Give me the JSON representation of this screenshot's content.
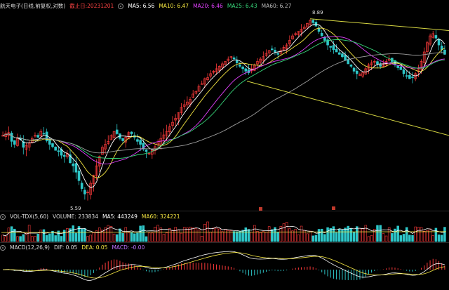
{
  "header": {
    "title": "航天电子(日线,前复权,对数)",
    "cutoff_label": "截止日:20231201",
    "ma5": "MA5: 6.56",
    "ma10": "MA10: 6.47",
    "ma20": "MA20: 6.46",
    "ma25": "MA25: 6.43",
    "ma60": "MA60: 6.27"
  },
  "volume_panel": {
    "title": "VOL-TDX(5,60)",
    "volume": "VOLUME: 233834",
    "ma5": "MA5: 443249",
    "ma60": "MA60: 324221"
  },
  "macd_panel": {
    "title": "MACD(12,26,9)",
    "dif": "DIF: 0.05",
    "dea": "DEA: 0.05",
    "macd": "MACD: -0.00"
  },
  "annotations": {
    "high": "8.89",
    "low": "5.59"
  },
  "colors": {
    "up": "#ff3b3b",
    "down": "#2ec7c9",
    "ma5": "#ffffff",
    "ma10": "#f5e642",
    "ma20": "#e040fb",
    "ma25": "#37d67a",
    "ma60": "#9e9e9e",
    "channel": "#d7d742",
    "cutoff": "#ff4444",
    "macd_dea": "#f5e642",
    "macd_label": "#c070ff"
  },
  "chart_data": [
    {
      "type": "candlestick",
      "name": "航天电子(日线,前复权,对数)",
      "low_value": 5.59,
      "high_value": 8.89,
      "moving_averages": {
        "MA5": 6.56,
        "MA10": 6.47,
        "MA20": 6.46,
        "MA25": 6.43,
        "MA60": 6.27
      },
      "close_series": [
        6.55,
        6.58,
        6.6,
        6.45,
        6.4,
        6.5,
        6.48,
        6.35,
        6.38,
        6.42,
        6.5,
        6.55,
        6.52,
        6.62,
        6.58,
        6.46,
        6.4,
        6.36,
        6.3,
        6.28,
        6.22,
        6.2,
        6.25,
        6.1,
        6.05,
        5.95,
        5.82,
        5.7,
        5.62,
        5.65,
        5.78,
        5.9,
        6.05,
        6.2,
        6.35,
        6.4,
        6.45,
        6.55,
        6.62,
        6.58,
        6.5,
        6.46,
        6.52,
        6.6,
        6.58,
        6.52,
        6.45,
        6.4,
        6.32,
        6.28,
        6.25,
        6.3,
        6.36,
        6.42,
        6.5,
        6.56,
        6.62,
        6.7,
        6.78,
        6.85,
        6.95,
        7.05,
        7.1,
        7.15,
        7.2,
        7.3,
        7.35,
        7.45,
        7.5,
        7.6,
        7.62,
        7.7,
        7.75,
        7.8,
        7.85,
        7.9,
        7.95,
        8.0,
        8.05,
        8.0,
        7.92,
        7.85,
        7.8,
        7.75,
        7.72,
        7.8,
        7.88,
        7.95,
        8.0,
        8.05,
        8.12,
        8.18,
        8.2,
        8.15,
        8.1,
        8.18,
        8.25,
        8.3,
        8.4,
        8.5,
        8.55,
        8.6,
        8.65,
        8.7,
        8.78,
        8.85,
        8.8,
        8.72,
        8.6,
        8.5,
        8.4,
        8.3,
        8.25,
        8.2,
        8.15,
        8.1,
        8.05,
        7.98,
        7.9,
        7.85,
        7.75,
        7.7,
        7.68,
        7.72,
        7.8,
        7.88,
        7.92,
        7.95,
        7.9,
        7.85,
        7.88,
        7.95,
        8.0,
        7.95,
        7.88,
        7.82,
        7.78,
        7.7,
        7.65,
        7.6,
        7.62,
        7.7,
        7.8,
        7.95,
        8.15,
        8.35,
        8.5,
        8.55,
        8.45,
        8.3,
        8.2,
        8.1
      ]
    },
    {
      "type": "bar",
      "name": "VOL-TDX(5,60)",
      "volume": 233834,
      "ma5": 443249,
      "ma60": 324221
    },
    {
      "type": "bar",
      "name": "MACD(12,26,9)",
      "dif": 0.05,
      "dea": 0.05,
      "macd": -0.0
    }
  ]
}
